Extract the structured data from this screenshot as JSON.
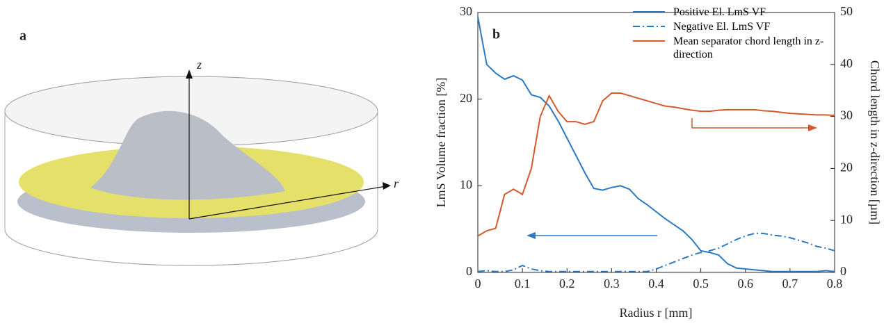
{
  "panel_a": {
    "label": "a",
    "z_label": "z",
    "r_label": "r"
  },
  "chart_data": {
    "type": "line",
    "panel_label": "b",
    "xlabel": "Radius r [mm]",
    "ylabel": "LmS Volume fraction [%]",
    "y2label": "Chord length in z-direction [µm]",
    "x": [
      0,
      0.02,
      0.04,
      0.06,
      0.08,
      0.1,
      0.12,
      0.14,
      0.16,
      0.18,
      0.2,
      0.22,
      0.24,
      0.26,
      0.28,
      0.3,
      0.32,
      0.34,
      0.36,
      0.38,
      0.4,
      0.42,
      0.44,
      0.46,
      0.48,
      0.5,
      0.52,
      0.54,
      0.56,
      0.58,
      0.6,
      0.62,
      0.64,
      0.66,
      0.68,
      0.7,
      0.72,
      0.74,
      0.76,
      0.78,
      0.8
    ],
    "series": [
      {
        "name": "Positive El. LmS VF",
        "color": "#2a78c2",
        "linestyle": "solid",
        "values": [
          29.5,
          24,
          23,
          22.3,
          22.7,
          22.2,
          20.5,
          20.2,
          19.2,
          17.5,
          15.5,
          13.5,
          11.5,
          9.7,
          9.5,
          9.8,
          10,
          9.6,
          8.5,
          7.8,
          7,
          6.2,
          5.5,
          4.8,
          3.8,
          2.5,
          2.3,
          2,
          1,
          0.5,
          0.4,
          0.3,
          0.2,
          0.1,
          0.1,
          0.1,
          0.1,
          0.1,
          0.1,
          0.2,
          0.1
        ]
      },
      {
        "name": "Negative El. LmS VF",
        "color": "#2a78c2",
        "linestyle": "dashdot",
        "values": [
          0.1,
          0.2,
          0.1,
          0.1,
          0.3,
          0.8,
          0.4,
          0.2,
          0.1,
          0.1,
          0.1,
          0.1,
          0.1,
          0.1,
          0.1,
          0.1,
          0.1,
          0.1,
          0.1,
          0.1,
          0.4,
          0.8,
          1.2,
          1.6,
          2,
          2.3,
          2.5,
          2.8,
          3.3,
          3.8,
          4.2,
          4.5,
          4.5,
          4.3,
          4.2,
          4,
          3.7,
          3.4,
          3,
          2.8,
          2.5
        ]
      },
      {
        "name": "Mean separator chord length in z-direction",
        "color": "#d5592b",
        "linestyle": "solid",
        "axis": "y2",
        "values": [
          7,
          8,
          8.5,
          15,
          16,
          15,
          20,
          30,
          34,
          31,
          29,
          29,
          28.5,
          29,
          33,
          34.5,
          34.5,
          34,
          33.5,
          33,
          32.5,
          32,
          31.8,
          31.5,
          31.2,
          31,
          31,
          31.2,
          31.3,
          31.3,
          31.3,
          31.3,
          31.1,
          31,
          30.8,
          30.6,
          30.5,
          30.4,
          30.3,
          30.3,
          30.2
        ]
      }
    ],
    "xlim": [
      0,
      0.8
    ],
    "xticks": [
      0,
      0.1,
      0.2,
      0.3,
      0.4,
      0.5,
      0.6,
      0.7,
      0.8
    ],
    "ylim": [
      0,
      30
    ],
    "yticks": [
      0,
      10,
      20,
      30
    ],
    "y2lim": [
      0,
      50
    ],
    "y2ticks": [
      0,
      10,
      20,
      30,
      40,
      50
    ]
  }
}
